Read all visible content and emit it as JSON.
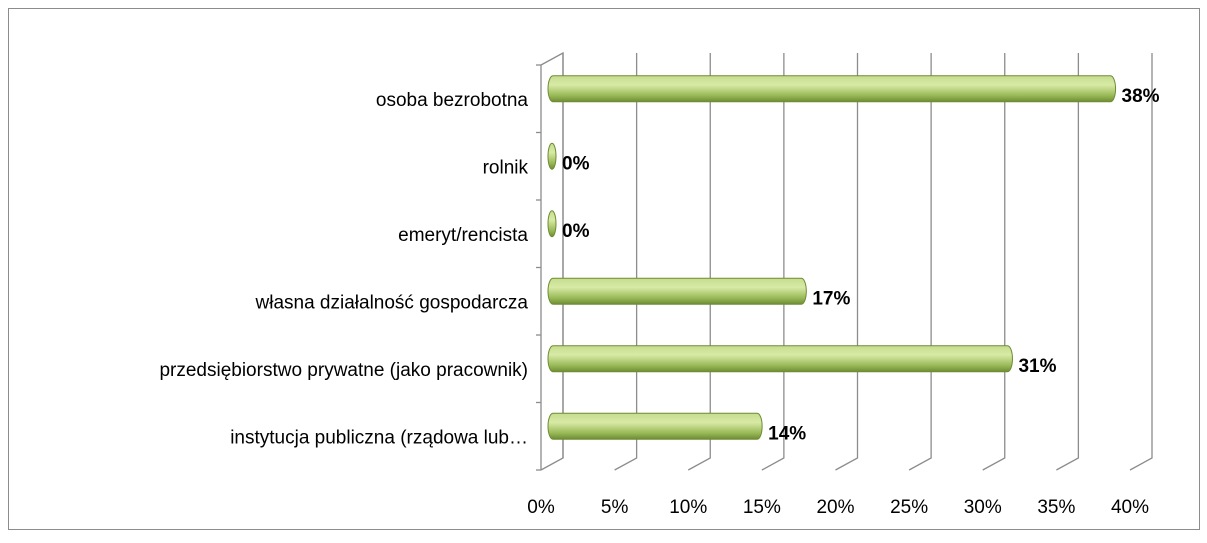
{
  "chart_data": {
    "type": "bar",
    "orientation": "horizontal",
    "categories": [
      "osoba bezrobotna",
      "rolnik",
      "emeryt/rencista",
      "własna działalność gospodarcza",
      "przedsiębiorstwo prywatne (jako pracownik)",
      "instytucja publiczna (rządowa lub…"
    ],
    "values": [
      38,
      0,
      0,
      17,
      31,
      14
    ],
    "value_labels": [
      "38%",
      "0%",
      "0%",
      "17%",
      "31%",
      "14%"
    ],
    "color": "#9bbb59",
    "xlim": [
      0,
      40
    ],
    "xticks": [
      {
        "value": 0,
        "label": "0%"
      },
      {
        "value": 5,
        "label": "5%"
      },
      {
        "value": 10,
        "label": "10%"
      },
      {
        "value": 15,
        "label": "15%"
      },
      {
        "value": 20,
        "label": "20%"
      },
      {
        "value": 25,
        "label": "25%"
      },
      {
        "value": 30,
        "label": "30%"
      },
      {
        "value": 35,
        "label": "35%"
      },
      {
        "value": 40,
        "label": "40%"
      }
    ],
    "grid": true
  }
}
